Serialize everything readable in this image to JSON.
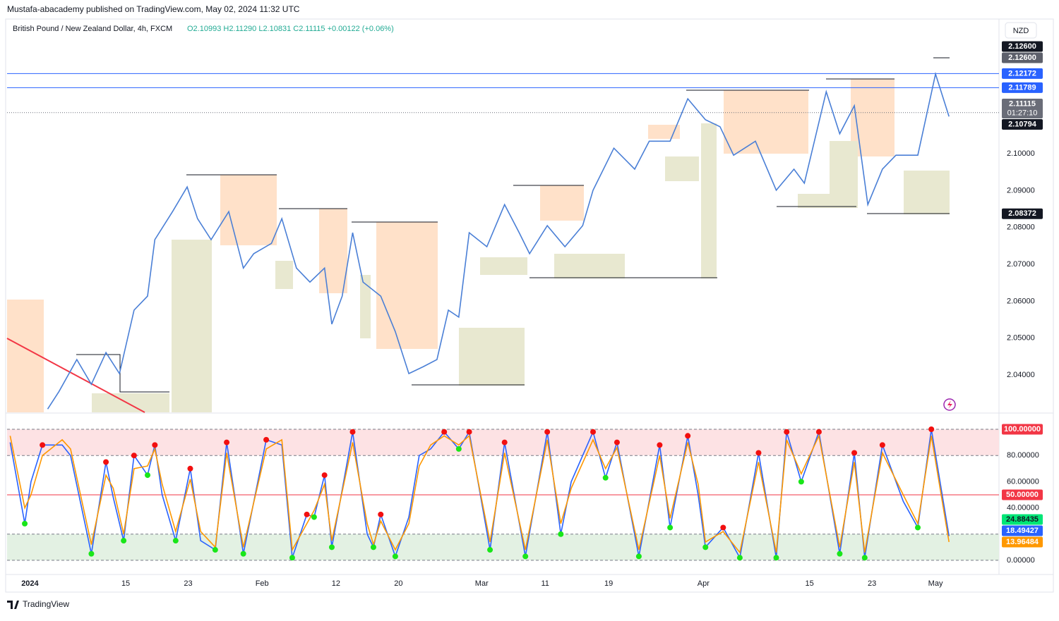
{
  "header": {
    "publisher": "Mustafa-abacademy published on TradingView.com, May 02, 2024 11:32 UTC",
    "legend": "British Pound / New Zealand Dollar, 4h, FXCM",
    "ohlc": "O2.10993  H2.11290  L2.10831  C2.11115  +0.00122 (+0.06%)",
    "currency": "NZD",
    "brand": "TradingView"
  },
  "chart_data": [
    {
      "type": "line",
      "x": [
        1.7,
        2.8,
        4.5,
        5.9,
        7.3,
        8.6,
        10.0,
        11.3,
        12.0,
        13.7,
        15.1,
        16.1,
        17.4,
        19.1,
        20.5,
        21.5,
        23.2,
        24.2,
        25.6,
        26.9,
        28.3,
        29.0,
        30.0,
        31.0,
        32.0,
        33.7,
        35.1,
        36.4,
        37.8,
        39.1,
        40.2,
        41.2,
        42.2,
        43.9,
        45.6,
        47.0,
        48.0,
        49.7,
        51.4,
        53.1,
        54.1,
        56.1,
        58.1,
        59.5,
        61.5,
        63.2,
        64.9,
        66.3,
        67.6,
        69.7,
        71.7,
        73.4,
        74.4,
        76.5,
        77.8,
        79.2,
        80.5,
        81.9,
        83.2,
        85.3,
        87.0,
        88.3
      ],
      "series": [
        {
          "color": "#4a7fd6",
          "values": [
            2.0308,
            2.0356,
            2.0442,
            2.0375,
            2.0461,
            2.0404,
            2.0576,
            2.0614,
            2.0767,
            2.0843,
            2.091,
            2.0824,
            2.0767,
            2.0843,
            2.069,
            2.0729,
            2.0757,
            2.0824,
            2.069,
            2.0652,
            2.069,
            2.0538,
            2.0614,
            2.0786,
            2.0652,
            2.0614,
            2.0518,
            2.0404,
            2.0423,
            2.0442,
            2.0576,
            2.0557,
            2.0786,
            2.0748,
            2.0862,
            2.0786,
            2.0729,
            2.0805,
            2.0748,
            2.0805,
            2.0901,
            2.1015,
            2.0958,
            2.1034,
            2.1034,
            2.1149,
            2.1092,
            2.1073,
            2.0996,
            2.1034,
            2.0901,
            2.0958,
            2.092,
            2.1168,
            2.1054,
            2.113,
            2.0862,
            2.0958,
            2.0996,
            2.0996,
            2.1216,
            2.1101
          ]
        }
      ],
      "xlim": [
        -2.2,
        93.1
      ],
      "xticks": [
        {
          "value": 0,
          "label": "2024"
        },
        {
          "value": 9.2,
          "label": "15"
        },
        {
          "value": 15.2,
          "label": "23"
        },
        {
          "value": 22.3,
          "label": "Feb"
        },
        {
          "value": 29.4,
          "label": "12"
        },
        {
          "value": 35.4,
          "label": "20"
        },
        {
          "value": 43.4,
          "label": "Mar"
        },
        {
          "value": 49.5,
          "label": "11"
        },
        {
          "value": 55.6,
          "label": "19"
        },
        {
          "value": 64.7,
          "label": "Apr"
        },
        {
          "value": 74.9,
          "label": "15"
        },
        {
          "value": 80.9,
          "label": "23"
        },
        {
          "value": 87.0,
          "label": "May"
        }
      ],
      "ylim": [
        2.0299,
        2.1365
      ],
      "yticks": [
        {
          "value": 2.04,
          "label": "2.04000"
        },
        {
          "value": 2.05,
          "label": "2.05000"
        },
        {
          "value": 2.06,
          "label": "2.06000"
        },
        {
          "value": 2.07,
          "label": "2.07000"
        },
        {
          "value": 2.08,
          "label": "2.08000"
        },
        {
          "value": 2.09,
          "label": "2.09000"
        },
        {
          "value": 2.1,
          "label": "2.10000"
        }
      ],
      "price_labels": [
        {
          "value": 2.126,
          "label": "2.12600",
          "color": "#131722"
        },
        {
          "value": 2.126,
          "label": "2.12600",
          "color": "#5d606b"
        },
        {
          "value": 2.12172,
          "label": "2.12172",
          "color": "#2962ff",
          "line": "solid"
        },
        {
          "value": 2.11789,
          "label": "2.11789",
          "color": "#2962ff",
          "line": "solid"
        },
        {
          "value": 2.11115,
          "label": "2.11115",
          "color": "#6a6d78",
          "line": "dotted",
          "countdown": "01:27:10"
        },
        {
          "value": 2.10794,
          "label": "2.10794",
          "color": "#131722"
        },
        {
          "value": 2.08372,
          "label": "2.08372",
          "color": "#131722"
        }
      ]
    },
    {
      "type": "line",
      "x": [
        -1.9,
        -0.5,
        0.1,
        1.2,
        3.1,
        3.9,
        5.9,
        7.3,
        8.0,
        9.0,
        10.0,
        11.3,
        12.0,
        12.7,
        14.0,
        15.4,
        16.4,
        17.8,
        18.9,
        20.5,
        22.7,
        24.2,
        25.2,
        26.6,
        27.3,
        28.3,
        29.0,
        31.0,
        32.4,
        33.0,
        33.7,
        35.1,
        36.4,
        37.4,
        38.5,
        39.8,
        41.2,
        42.2,
        44.2,
        45.6,
        47.6,
        49.7,
        51.0,
        52.0,
        54.1,
        55.3,
        56.4,
        58.5,
        60.5,
        61.5,
        63.2,
        64.2,
        64.9,
        66.6,
        68.2,
        70.0,
        71.7,
        72.7,
        74.1,
        75.8,
        77.8,
        79.2,
        80.2,
        81.9,
        83.9,
        85.3,
        86.6,
        88.3
      ],
      "series": [
        {
          "color": "#2962ff",
          "values": [
            90,
            28,
            60,
            88,
            88,
            80,
            5,
            75,
            48,
            15,
            80,
            65,
            88,
            50,
            15,
            70,
            15,
            8,
            90,
            5,
            92,
            88,
            2,
            35,
            33,
            65,
            10,
            98,
            20,
            10,
            35,
            3,
            33,
            80,
            85,
            98,
            85,
            98,
            8,
            90,
            3,
            98,
            20,
            60,
            98,
            63,
            90,
            3,
            88,
            25,
            95,
            50,
            10,
            25,
            2,
            82,
            2,
            98,
            60,
            98,
            5,
            82,
            2,
            88,
            45,
            25,
            100,
            18.5
          ]
        },
        {
          "color": "#ff9800",
          "values": [
            95,
            40,
            50,
            80,
            92,
            85,
            12,
            65,
            55,
            20,
            70,
            72,
            85,
            58,
            22,
            62,
            22,
            10,
            82,
            10,
            85,
            92,
            8,
            28,
            38,
            58,
            15,
            90,
            28,
            12,
            30,
            8,
            28,
            72,
            88,
            95,
            88,
            95,
            14,
            82,
            8,
            92,
            28,
            55,
            92,
            70,
            86,
            8,
            80,
            32,
            90,
            58,
            14,
            22,
            6,
            75,
            6,
            92,
            66,
            95,
            10,
            75,
            6,
            82,
            50,
            28,
            95,
            14
          ]
        }
      ],
      "ylim": [
        -10.8,
        111.3
      ],
      "yticks": [
        {
          "value": 0,
          "label": "0.00000"
        },
        {
          "value": 40,
          "label": "40.00000"
        },
        {
          "value": 60,
          "label": "60.00000"
        },
        {
          "value": 80,
          "label": "80.00000"
        }
      ],
      "bands": [
        {
          "from": 80,
          "to": 100,
          "color": "#fde2e4"
        },
        {
          "from": 0,
          "to": 20,
          "color": "#e3f1e3"
        }
      ],
      "level_labels": [
        {
          "value": 100,
          "label": "100.00000",
          "color": "#f23645"
        },
        {
          "value": 50,
          "label": "50.00000",
          "color": "#f23645",
          "line": "solid"
        },
        {
          "value": 24.88435,
          "label": "24.88435",
          "color": "#00e676"
        },
        {
          "value": 18.49427,
          "label": "18.49427",
          "color": "#2962ff"
        },
        {
          "value": 13.96484,
          "label": "13.96484",
          "color": "#ff9800"
        }
      ]
    }
  ]
}
